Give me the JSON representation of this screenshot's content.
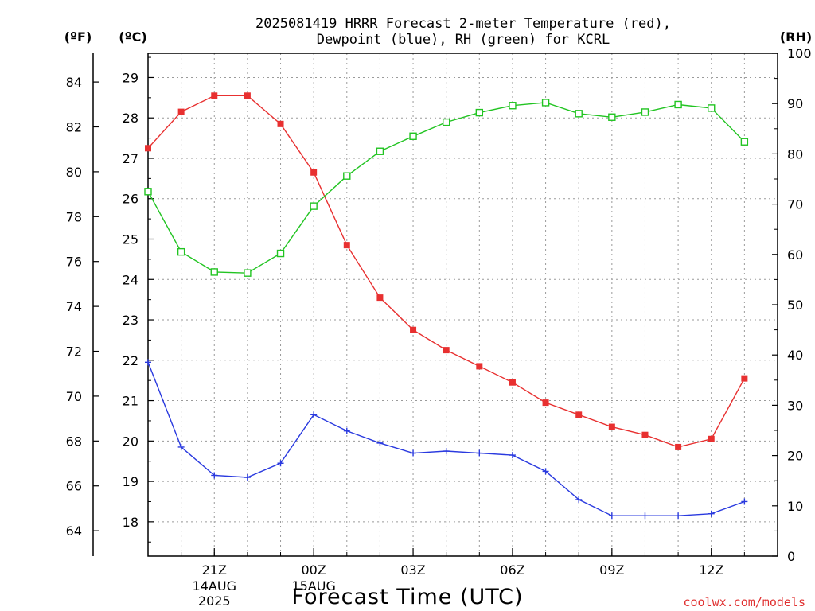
{
  "chart_data": {
    "type": "line",
    "title_line1": "2025081419 HRRR Forecast 2-meter Temperature (red),",
    "title_line2": "Dewpoint (blue), RH (green) for KCRL",
    "xlabel": "Forecast Time (UTC)",
    "unit_labels": {
      "fahrenheit": "(ºF)",
      "celsius": "(ºC)",
      "rh": "(RH)"
    },
    "credit": "coolwx.com/models",
    "x_hours": [
      -1,
      0,
      1,
      2,
      3,
      4,
      5,
      6,
      7,
      8,
      9,
      10,
      11,
      12,
      13,
      14,
      15,
      16,
      17,
      18
    ],
    "x_ticks": [
      {
        "hour": 1,
        "label": "21Z",
        "sub1": "14AUG",
        "sub2": "2025"
      },
      {
        "hour": 4,
        "label": "00Z",
        "sub1": "15AUG",
        "sub2": ""
      },
      {
        "hour": 7,
        "label": "03Z",
        "sub1": "",
        "sub2": ""
      },
      {
        "hour": 10,
        "label": "06Z",
        "sub1": "",
        "sub2": ""
      },
      {
        "hour": 13,
        "label": "09Z",
        "sub1": "",
        "sub2": ""
      },
      {
        "hour": 16,
        "label": "12Z",
        "sub1": "",
        "sub2": ""
      }
    ],
    "xlim": [
      -1,
      18
    ],
    "celsius_ylim": [
      17.15,
      29.6
    ],
    "celsius_ticks": [
      18,
      19,
      20,
      21,
      22,
      23,
      24,
      25,
      26,
      27,
      28,
      29
    ],
    "fahrenheit_ticks": [
      64,
      66,
      68,
      70,
      72,
      74,
      76,
      78,
      80,
      82,
      84
    ],
    "rh_ylim": [
      0,
      100
    ],
    "rh_ticks": [
      0,
      10,
      20,
      30,
      40,
      50,
      60,
      70,
      80,
      90,
      100
    ],
    "colors": {
      "temperature": "#e83030",
      "dewpoint": "#2a3adf",
      "rh": "#22c422"
    },
    "series": [
      {
        "name": "Temperature",
        "axis": "celsius",
        "marker": "filled-square",
        "values": [
          27.25,
          28.15,
          28.55,
          28.55,
          27.85,
          26.65,
          24.85,
          23.55,
          22.75,
          22.25,
          21.85,
          21.45,
          20.95,
          20.65,
          20.35,
          20.15,
          19.85,
          20.05,
          21.55
        ]
      },
      {
        "name": "Dewpoint",
        "axis": "celsius",
        "marker": "plus",
        "values": [
          21.95,
          19.85,
          19.15,
          19.1,
          19.45,
          20.65,
          20.25,
          19.95,
          19.7,
          19.75,
          19.7,
          19.65,
          19.25,
          18.55,
          18.15,
          18.15,
          18.15,
          18.2,
          18.5
        ]
      },
      {
        "name": "RH",
        "axis": "rh",
        "marker": "open-square",
        "values": [
          72.5,
          60.5,
          56.5,
          56.3,
          60.2,
          69.6,
          75.6,
          80.5,
          83.5,
          86.3,
          88.2,
          89.6,
          90.2,
          88.0,
          87.3,
          88.3,
          89.8,
          89.1,
          82.4
        ]
      }
    ]
  }
}
